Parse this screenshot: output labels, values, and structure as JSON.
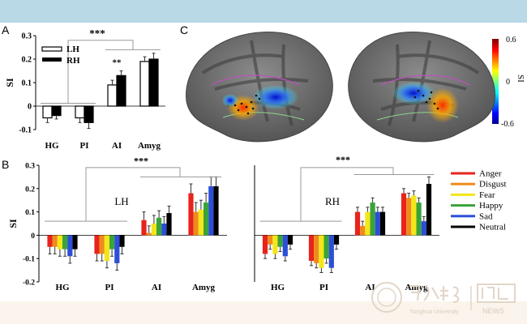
{
  "panel_labels": {
    "a": "A",
    "b": "B",
    "c": "C"
  },
  "colors": {
    "Anger": "#e8231c",
    "Disgust": "#f08a1c",
    "Fear": "#f3e61a",
    "Happy": "#3aa33a",
    "Sad": "#2b4fd6",
    "Neutral": "#000000",
    "LH": "#ffffff",
    "RH": "#000000"
  },
  "colorbar": {
    "max_label": "0.6",
    "mid_label": "0",
    "min_label": "-0.6",
    "label": "SI"
  },
  "watermark": {
    "text": "Tsinghua University",
    "news": "NEWS"
  },
  "chart_data": [
    {
      "id": "A",
      "type": "bar",
      "ylabel": "SI",
      "ylim": [
        -0.1,
        0.3
      ],
      "yticks": [
        "-0.1",
        "0",
        "0.1",
        "0.2",
        "0.3"
      ],
      "categories": [
        "HG",
        "PI",
        "AI",
        "Amyg"
      ],
      "series": [
        {
          "name": "LH",
          "values": [
            -0.05,
            -0.05,
            0.09,
            0.19
          ],
          "errors": [
            0.02,
            0.02,
            0.02,
            0.02
          ]
        },
        {
          "name": "RH",
          "values": [
            -0.04,
            -0.07,
            0.13,
            0.2
          ],
          "errors": [
            0.015,
            0.025,
            0.02,
            0.025
          ]
        }
      ],
      "annotations": [
        "***",
        "**"
      ],
      "legend": "top-left"
    },
    {
      "id": "B-LH",
      "type": "bar",
      "ylabel": "SI",
      "ylim": [
        -0.2,
        0.3
      ],
      "yticks": [
        "-0.2",
        "-0.1",
        "0",
        "0.1",
        "0.2",
        "0.3"
      ],
      "title": "LH",
      "categories": [
        "HG",
        "PI",
        "AI",
        "Amyg"
      ],
      "series": [
        {
          "name": "Anger",
          "values": [
            -0.05,
            -0.08,
            0.065,
            0.18
          ],
          "errors": [
            0.03,
            0.03,
            0.035,
            0.04
          ]
        },
        {
          "name": "Disgust",
          "values": [
            -0.05,
            -0.08,
            0.01,
            0.1
          ],
          "errors": [
            0.03,
            0.03,
            0.03,
            0.04
          ]
        },
        {
          "name": "Fear",
          "values": [
            -0.06,
            -0.11,
            0.05,
            0.11
          ],
          "errors": [
            0.03,
            0.03,
            0.035,
            0.04
          ]
        },
        {
          "name": "Happy",
          "values": [
            -0.06,
            -0.06,
            0.075,
            0.14
          ],
          "errors": [
            0.03,
            0.03,
            0.03,
            0.04
          ]
        },
        {
          "name": "Sad",
          "values": [
            -0.09,
            -0.12,
            0.05,
            0.21
          ],
          "errors": [
            0.03,
            0.03,
            0.03,
            0.04
          ]
        },
        {
          "name": "Neutral",
          "values": [
            -0.06,
            -0.05,
            0.095,
            0.21
          ],
          "errors": [
            0.03,
            0.03,
            0.03,
            0.04
          ]
        }
      ],
      "annotations": [
        "***"
      ]
    },
    {
      "id": "B-RH",
      "type": "bar",
      "ylim": [
        -0.2,
        0.3
      ],
      "title": "RH",
      "categories": [
        "HG",
        "PI",
        "AI",
        "Amyg"
      ],
      "series": [
        {
          "name": "Anger",
          "values": [
            -0.08,
            -0.11,
            0.1,
            0.18
          ],
          "errors": [
            0.02,
            0.02,
            0.02,
            0.02
          ]
        },
        {
          "name": "Disgust",
          "values": [
            -0.04,
            -0.12,
            0.04,
            0.16
          ],
          "errors": [
            0.02,
            0.02,
            0.02,
            0.02
          ]
        },
        {
          "name": "Fear",
          "values": [
            -0.08,
            -0.14,
            0.1,
            0.17
          ],
          "errors": [
            0.02,
            0.02,
            0.02,
            0.02
          ]
        },
        {
          "name": "Happy",
          "values": [
            -0.05,
            -0.1,
            0.14,
            0.14
          ],
          "errors": [
            0.02,
            0.02,
            0.02,
            0.02
          ]
        },
        {
          "name": "Sad",
          "values": [
            -0.09,
            -0.14,
            0.1,
            0.06
          ],
          "errors": [
            0.02,
            0.02,
            0.02,
            0.02
          ]
        },
        {
          "name": "Neutral",
          "values": [
            -0.04,
            -0.04,
            0.1,
            0.22
          ],
          "errors": [
            0.02,
            0.02,
            0.02,
            0.03
          ]
        }
      ],
      "annotations": [
        "***"
      ],
      "legend": "right"
    }
  ]
}
